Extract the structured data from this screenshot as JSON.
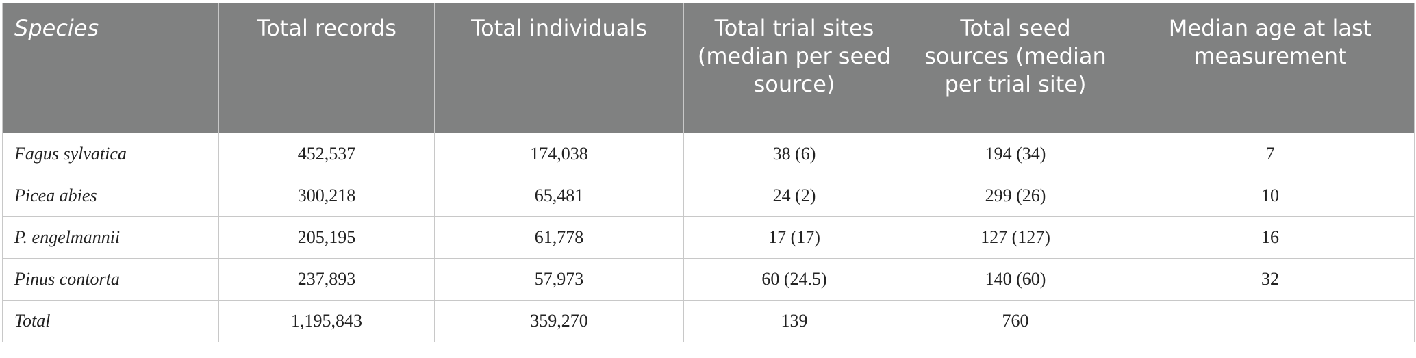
{
  "table": {
    "headers": [
      "Species",
      "Total records",
      "Total individuals",
      "Total trial sites (median per seed source)",
      "Total seed sources (median per trial site)",
      "Median age at last measurement"
    ],
    "rows": [
      [
        "Fagus sylvatica",
        "452,537",
        "174,038",
        "38 (6)",
        "194 (34)",
        "7"
      ],
      [
        "Picea abies",
        "300,218",
        "65,481",
        "24 (2)",
        "299 (26)",
        "10"
      ],
      [
        "P. engelmannii",
        "205,195",
        "61,778",
        "17 (17)",
        "127 (127)",
        "16"
      ],
      [
        "Pinus contorta",
        "237,893",
        "57,973",
        "60 (24.5)",
        "140 (60)",
        "32"
      ],
      [
        "Total",
        "1,195,843",
        "359,270",
        "139",
        "760",
        ""
      ]
    ]
  }
}
